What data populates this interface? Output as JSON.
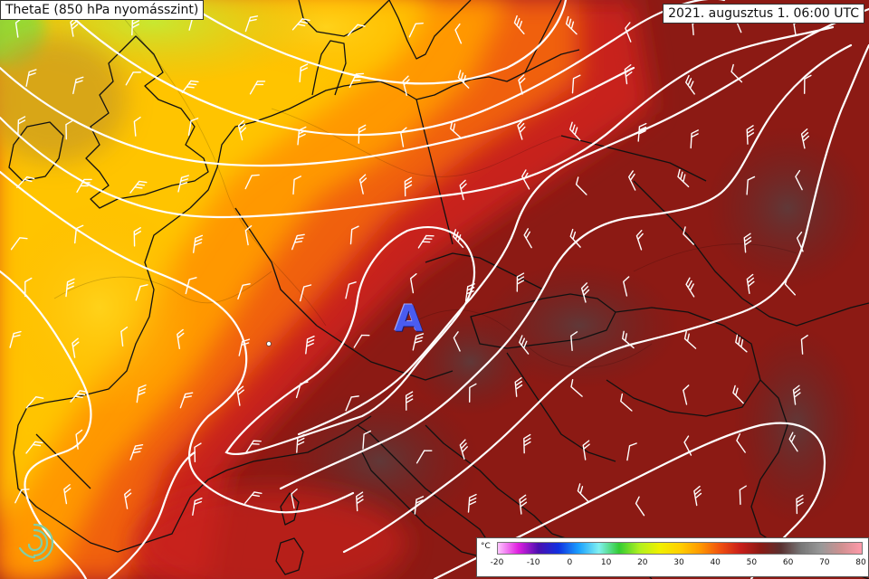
{
  "title": "ThetaE (850 hPa nyomásszint)",
  "valid_time": "2021. augusztus 1. 06:00 UTC",
  "pressure_center": "A",
  "legend": {
    "unit": "°C",
    "ticks": [
      "-20",
      "-10",
      "0",
      "10",
      "20",
      "30",
      "40",
      "50",
      "60",
      "70",
      "80"
    ],
    "colors": [
      "#ffc6ff",
      "#e020e0",
      "#4b0fb0",
      "#1030e0",
      "#1aa0ff",
      "#80f0f0",
      "#33cc33",
      "#b0f020",
      "#f0f000",
      "#ffd000",
      "#ff9900",
      "#f05010",
      "#c81e1a",
      "#8a1a14",
      "#5a3030",
      "#777777",
      "#999999",
      "#d09090",
      "#ff9aaa"
    ]
  },
  "palette": {
    "contour": "#ffffff",
    "border": "#111111",
    "barb": "#ffffff",
    "pressure_label": "#4a5cf0"
  }
}
